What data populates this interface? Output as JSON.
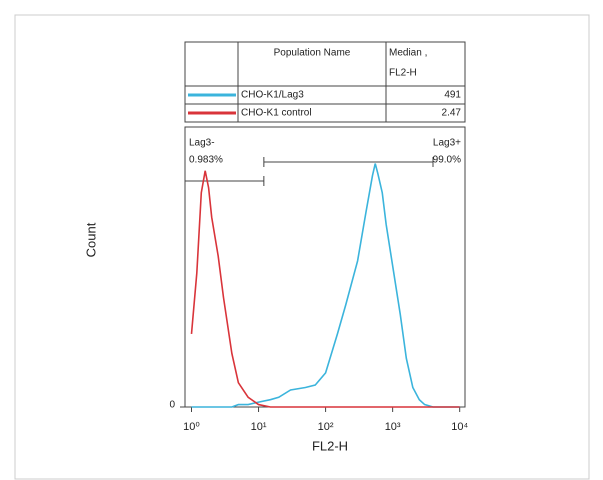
{
  "chart_data": {
    "type": "line",
    "xlabel": "FL2-H",
    "ylabel": "Count",
    "xscale": "log",
    "xlim": [
      0.8,
      12000
    ],
    "xticks": [
      {
        "value": 1,
        "label": "10⁰"
      },
      {
        "value": 10,
        "label": "10¹"
      },
      {
        "value": 100,
        "label": "10²"
      },
      {
        "value": 1000,
        "label": "10³"
      },
      {
        "value": 10000,
        "label": "10⁴"
      }
    ],
    "ylim": [
      0,
      115
    ],
    "yticks": [
      0
    ],
    "legend_header": {
      "name": "Population Name",
      "median": [
        "Median ,",
        "FL2-H"
      ]
    },
    "x": [
      1,
      1.2,
      1.4,
      1.6,
      1.8,
      2,
      2.5,
      3,
      4,
      5,
      7,
      10,
      15,
      20,
      30,
      50,
      70,
      100,
      150,
      200,
      300,
      400,
      500,
      550,
      600,
      700,
      800,
      1000,
      1300,
      1600,
      2000,
      2500,
      3000,
      4000,
      6000,
      10000
    ],
    "series": [
      {
        "name": "CHO-K1/Lag3",
        "color": "#3bb4dc",
        "median": 491,
        "values": [
          0,
          0,
          0,
          0,
          0,
          0,
          0,
          0,
          0,
          1,
          1,
          2,
          3,
          4,
          7,
          8,
          9,
          14,
          30,
          42,
          60,
          80,
          95,
          100,
          96,
          88,
          75,
          58,
          38,
          20,
          8,
          3,
          1,
          0,
          0,
          0
        ]
      },
      {
        "name": "CHO-K1 control",
        "color": "#d9343a",
        "median": 2.47,
        "values": [
          30,
          55,
          88,
          97,
          90,
          78,
          62,
          45,
          22,
          10,
          4,
          1,
          0,
          0,
          0,
          0,
          0,
          0,
          0,
          0,
          0,
          0,
          0,
          0,
          0,
          0,
          0,
          0,
          0,
          0,
          0,
          0,
          0,
          0,
          0,
          0
        ]
      }
    ],
    "gates": [
      {
        "name": "Lag3-",
        "label": "0.983%",
        "range": [
          0.8,
          12
        ]
      },
      {
        "name": "Lag3+",
        "label": "99.0%",
        "range": [
          12,
          4000
        ]
      }
    ]
  }
}
